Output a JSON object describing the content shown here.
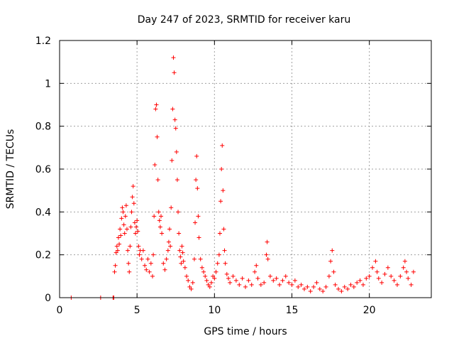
{
  "chart_data": {
    "type": "scatter",
    "title": "Day 247 of 2023, SRMTID for receiver karu",
    "xlabel": "GPS time / hours",
    "ylabel": "SRMTID / TECUs",
    "xlim": [
      0,
      24
    ],
    "ylim": [
      0,
      1.2
    ],
    "xticks": [
      0,
      5,
      10,
      15,
      20
    ],
    "xtick_labels": [
      "0",
      "5",
      "10",
      "15",
      "20"
    ],
    "yticks": [
      0,
      0.2,
      0.4,
      0.6,
      0.8,
      1.0,
      1.2
    ],
    "ytick_labels": [
      "0",
      "0.2",
      "0.4",
      "0.6",
      "0.8",
      "1",
      "1.2"
    ],
    "grid": true,
    "marker": "+",
    "series": [
      {
        "name": "SRMTID",
        "color": "#ff0000",
        "points": [
          [
            0.75,
            0.0
          ],
          [
            2.65,
            0.0
          ],
          [
            3.45,
            0.0
          ],
          [
            3.5,
            0.0
          ],
          [
            3.55,
            0.12
          ],
          [
            3.6,
            0.15
          ],
          [
            3.65,
            0.21
          ],
          [
            3.7,
            0.24
          ],
          [
            3.75,
            0.22
          ],
          [
            3.8,
            0.28
          ],
          [
            3.85,
            0.25
          ],
          [
            3.9,
            0.32
          ],
          [
            3.95,
            0.29
          ],
          [
            4.0,
            0.37
          ],
          [
            4.05,
            0.42
          ],
          [
            4.1,
            0.4
          ],
          [
            4.15,
            0.34
          ],
          [
            4.2,
            0.3
          ],
          [
            4.25,
            0.38
          ],
          [
            4.3,
            0.43
          ],
          [
            4.35,
            0.32
          ],
          [
            4.4,
            0.22
          ],
          [
            4.45,
            0.16
          ],
          [
            4.5,
            0.12
          ],
          [
            4.55,
            0.24
          ],
          [
            4.6,
            0.33
          ],
          [
            4.65,
            0.4
          ],
          [
            4.7,
            0.47
          ],
          [
            4.75,
            0.52
          ],
          [
            4.8,
            0.44
          ],
          [
            4.85,
            0.35
          ],
          [
            4.9,
            0.3
          ],
          [
            4.95,
            0.33
          ],
          [
            5.0,
            0.36
          ],
          [
            5.05,
            0.31
          ],
          [
            5.1,
            0.24
          ],
          [
            5.15,
            0.2
          ],
          [
            5.2,
            0.22
          ],
          [
            5.3,
            0.18
          ],
          [
            5.4,
            0.22
          ],
          [
            5.5,
            0.15
          ],
          [
            5.6,
            0.13
          ],
          [
            5.7,
            0.18
          ],
          [
            5.8,
            0.12
          ],
          [
            5.9,
            0.16
          ],
          [
            6.0,
            0.1
          ],
          [
            6.05,
            0.2
          ],
          [
            6.1,
            0.38
          ],
          [
            6.15,
            0.62
          ],
          [
            6.2,
            0.88
          ],
          [
            6.25,
            0.9
          ],
          [
            6.3,
            0.75
          ],
          [
            6.35,
            0.55
          ],
          [
            6.4,
            0.4
          ],
          [
            6.45,
            0.36
          ],
          [
            6.5,
            0.33
          ],
          [
            6.55,
            0.38
          ],
          [
            6.6,
            0.3
          ],
          [
            6.7,
            0.16
          ],
          [
            6.8,
            0.13
          ],
          [
            6.9,
            0.18
          ],
          [
            7.0,
            0.22
          ],
          [
            7.05,
            0.26
          ],
          [
            7.1,
            0.32
          ],
          [
            7.15,
            0.24
          ],
          [
            7.2,
            0.42
          ],
          [
            7.25,
            0.64
          ],
          [
            7.3,
            0.88
          ],
          [
            7.35,
            1.12
          ],
          [
            7.4,
            1.05
          ],
          [
            7.45,
            0.83
          ],
          [
            7.5,
            0.79
          ],
          [
            7.55,
            0.68
          ],
          [
            7.6,
            0.55
          ],
          [
            7.65,
            0.4
          ],
          [
            7.7,
            0.3
          ],
          [
            7.75,
            0.22
          ],
          [
            7.8,
            0.19
          ],
          [
            7.85,
            0.16
          ],
          [
            7.9,
            0.24
          ],
          [
            7.95,
            0.21
          ],
          [
            8.0,
            0.17
          ],
          [
            8.1,
            0.14
          ],
          [
            8.2,
            0.1
          ],
          [
            8.3,
            0.08
          ],
          [
            8.4,
            0.05
          ],
          [
            8.5,
            0.04
          ],
          [
            8.6,
            0.07
          ],
          [
            8.7,
            0.18
          ],
          [
            8.75,
            0.35
          ],
          [
            8.8,
            0.55
          ],
          [
            8.85,
            0.66
          ],
          [
            8.9,
            0.51
          ],
          [
            8.95,
            0.38
          ],
          [
            9.0,
            0.28
          ],
          [
            9.1,
            0.18
          ],
          [
            9.2,
            0.14
          ],
          [
            9.3,
            0.12
          ],
          [
            9.4,
            0.1
          ],
          [
            9.5,
            0.08
          ],
          [
            9.6,
            0.06
          ],
          [
            9.7,
            0.05
          ],
          [
            9.8,
            0.07
          ],
          [
            9.9,
            0.1
          ],
          [
            10.0,
            0.09
          ],
          [
            10.1,
            0.12
          ],
          [
            10.2,
            0.16
          ],
          [
            10.3,
            0.2
          ],
          [
            10.35,
            0.3
          ],
          [
            10.4,
            0.45
          ],
          [
            10.45,
            0.6
          ],
          [
            10.5,
            0.71
          ],
          [
            10.55,
            0.5
          ],
          [
            10.6,
            0.32
          ],
          [
            10.65,
            0.22
          ],
          [
            10.7,
            0.16
          ],
          [
            10.8,
            0.11
          ],
          [
            10.9,
            0.09
          ],
          [
            11.0,
            0.07
          ],
          [
            11.2,
            0.1
          ],
          [
            11.4,
            0.08
          ],
          [
            11.6,
            0.06
          ],
          [
            11.8,
            0.09
          ],
          [
            12.0,
            0.05
          ],
          [
            12.2,
            0.08
          ],
          [
            12.4,
            0.06
          ],
          [
            12.6,
            0.12
          ],
          [
            12.7,
            0.15
          ],
          [
            12.8,
            0.09
          ],
          [
            13.0,
            0.06
          ],
          [
            13.2,
            0.07
          ],
          [
            13.35,
            0.2
          ],
          [
            13.4,
            0.26
          ],
          [
            13.45,
            0.18
          ],
          [
            13.6,
            0.1
          ],
          [
            13.8,
            0.08
          ],
          [
            14.0,
            0.09
          ],
          [
            14.2,
            0.06
          ],
          [
            14.4,
            0.08
          ],
          [
            14.6,
            0.1
          ],
          [
            14.8,
            0.07
          ],
          [
            15.0,
            0.06
          ],
          [
            15.2,
            0.08
          ],
          [
            15.4,
            0.05
          ],
          [
            15.6,
            0.06
          ],
          [
            15.8,
            0.04
          ],
          [
            16.0,
            0.05
          ],
          [
            16.2,
            0.03
          ],
          [
            16.4,
            0.05
          ],
          [
            16.6,
            0.07
          ],
          [
            16.8,
            0.04
          ],
          [
            17.0,
            0.03
          ],
          [
            17.2,
            0.05
          ],
          [
            17.4,
            0.1
          ],
          [
            17.5,
            0.17
          ],
          [
            17.6,
            0.22
          ],
          [
            17.7,
            0.12
          ],
          [
            17.8,
            0.06
          ],
          [
            18.0,
            0.04
          ],
          [
            18.2,
            0.03
          ],
          [
            18.4,
            0.05
          ],
          [
            18.6,
            0.04
          ],
          [
            18.8,
            0.06
          ],
          [
            19.0,
            0.05
          ],
          [
            19.2,
            0.07
          ],
          [
            19.4,
            0.08
          ],
          [
            19.6,
            0.06
          ],
          [
            19.8,
            0.09
          ],
          [
            20.0,
            0.1
          ],
          [
            20.2,
            0.14
          ],
          [
            20.4,
            0.17
          ],
          [
            20.5,
            0.12
          ],
          [
            20.6,
            0.09
          ],
          [
            20.8,
            0.07
          ],
          [
            21.0,
            0.11
          ],
          [
            21.2,
            0.14
          ],
          [
            21.4,
            0.1
          ],
          [
            21.6,
            0.08
          ],
          [
            21.8,
            0.06
          ],
          [
            22.0,
            0.1
          ],
          [
            22.2,
            0.14
          ],
          [
            22.3,
            0.17
          ],
          [
            22.4,
            0.12
          ],
          [
            22.5,
            0.09
          ],
          [
            22.7,
            0.06
          ],
          [
            22.85,
            0.12
          ]
        ]
      }
    ]
  }
}
